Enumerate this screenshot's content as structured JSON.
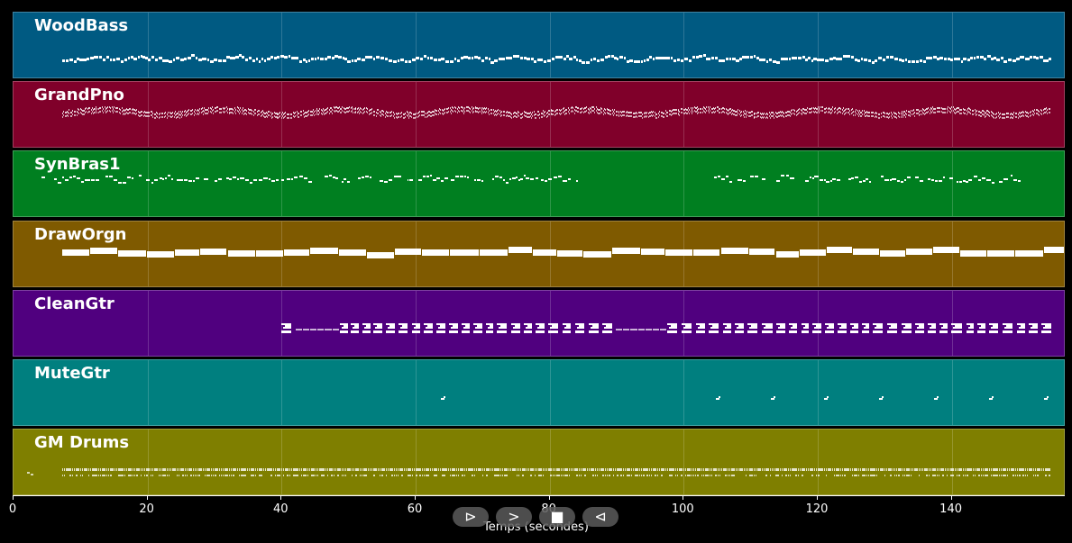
{
  "window": {
    "title": ""
  },
  "chart_data": {
    "type": "piano_roll",
    "xlabel": "Temps (secondes)",
    "xlim": [
      0,
      157
    ],
    "xticks": [
      0,
      20,
      40,
      60,
      80,
      100,
      120,
      140
    ],
    "xtick_labels": [
      "0",
      "20",
      "40",
      "60",
      "80",
      "100",
      "120",
      "140"
    ],
    "grid": true,
    "tracks": [
      {
        "name": "WoodBass",
        "color": "#005A82",
        "note_start": 7.2,
        "note_end": 154.7,
        "style": "bass"
      },
      {
        "name": "GrandPno",
        "color": "#80002A",
        "note_start": 7.2,
        "note_end": 154.7,
        "style": "piano"
      },
      {
        "name": "SynBras1",
        "color": "#007F20",
        "note_start": 4.2,
        "note_end": 150.0,
        "style": "brass"
      },
      {
        "name": "DrawOrgn",
        "color": "#7F5A00",
        "note_start": 7.2,
        "note_end": 154.7,
        "style": "organ"
      },
      {
        "name": "CleanGtr",
        "color": "#50007F",
        "note_start": 40.0,
        "note_end": 153.5,
        "style": "guitar"
      },
      {
        "name": "MuteGtr",
        "color": "#007F7F",
        "note_start": 63.8,
        "note_end": 154.7,
        "style": "mute"
      },
      {
        "name": "GM Drums",
        "color": "#7F7F00",
        "note_start": 2.0,
        "note_end": 154.7,
        "style": "drums"
      }
    ]
  },
  "controls": [
    {
      "name": "play-icon",
      "glyph": "⊳"
    },
    {
      "name": "forward-icon",
      "glyph": ">"
    },
    {
      "name": "stop-icon",
      "glyph": "■"
    },
    {
      "name": "rewind-icon",
      "glyph": "⊲"
    }
  ]
}
